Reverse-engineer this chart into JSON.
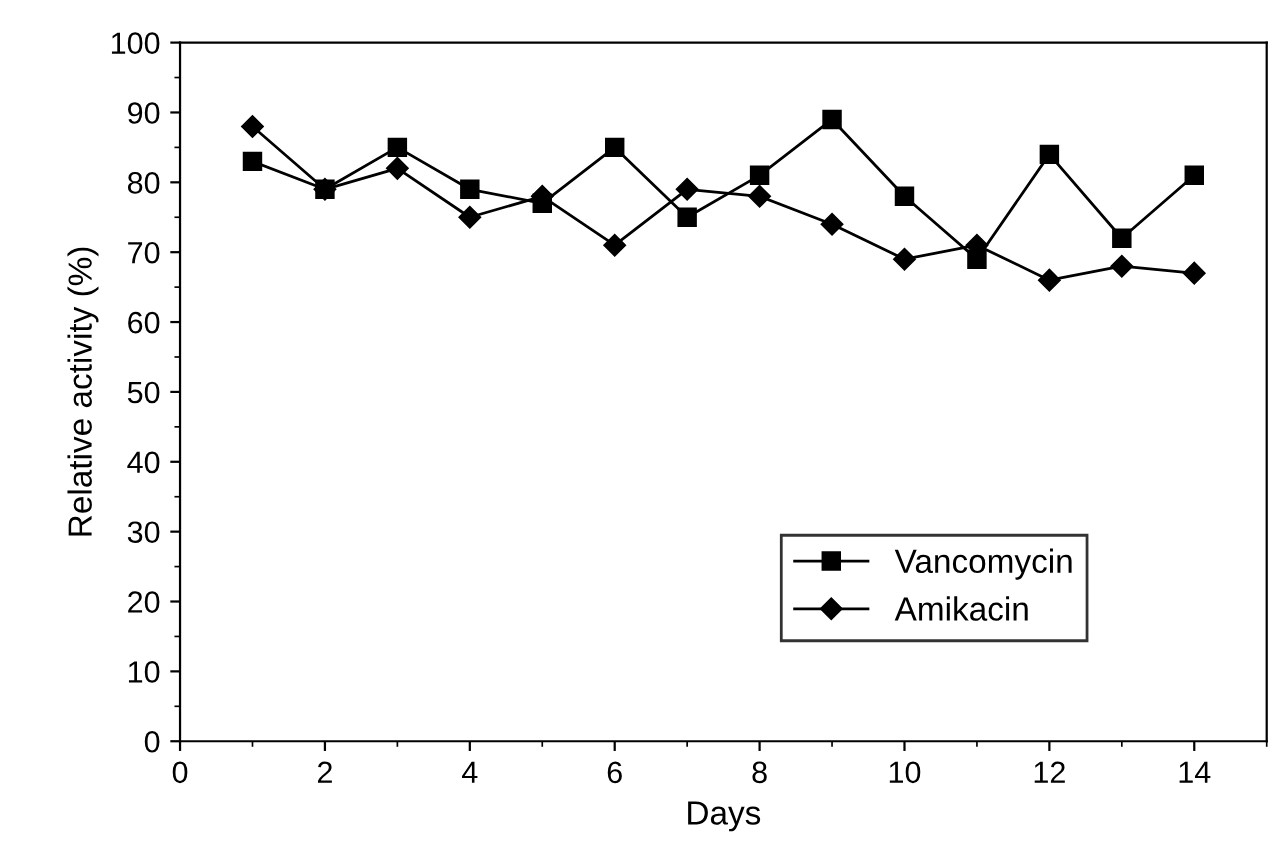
{
  "chart_data": {
    "type": "line",
    "xlabel": "Days",
    "ylabel": "Relative activity (%)",
    "x": [
      1,
      2,
      3,
      4,
      5,
      6,
      7,
      8,
      9,
      10,
      11,
      12,
      13,
      14
    ],
    "series": [
      {
        "name": "Vancomycin",
        "color": "#000000",
        "marker": "square",
        "values": [
          83,
          79,
          85,
          79,
          77,
          85,
          75,
          81,
          89,
          78,
          69,
          84,
          72,
          81
        ]
      },
      {
        "name": "Amikacin",
        "color": "#000000",
        "marker": "diamond",
        "values": [
          88,
          79,
          82,
          75,
          78,
          71,
          79,
          78,
          74,
          69,
          71,
          66,
          68,
          67
        ]
      }
    ],
    "xlim": [
      0,
      15
    ],
    "xticks": [
      0,
      2,
      4,
      6,
      8,
      10,
      12,
      14
    ],
    "ylim": [
      0,
      100
    ],
    "yticks": [
      0,
      10,
      20,
      30,
      40,
      50,
      60,
      70,
      80,
      90,
      100
    ],
    "line_style": "solid",
    "grid": false,
    "legend": "bottom right"
  }
}
